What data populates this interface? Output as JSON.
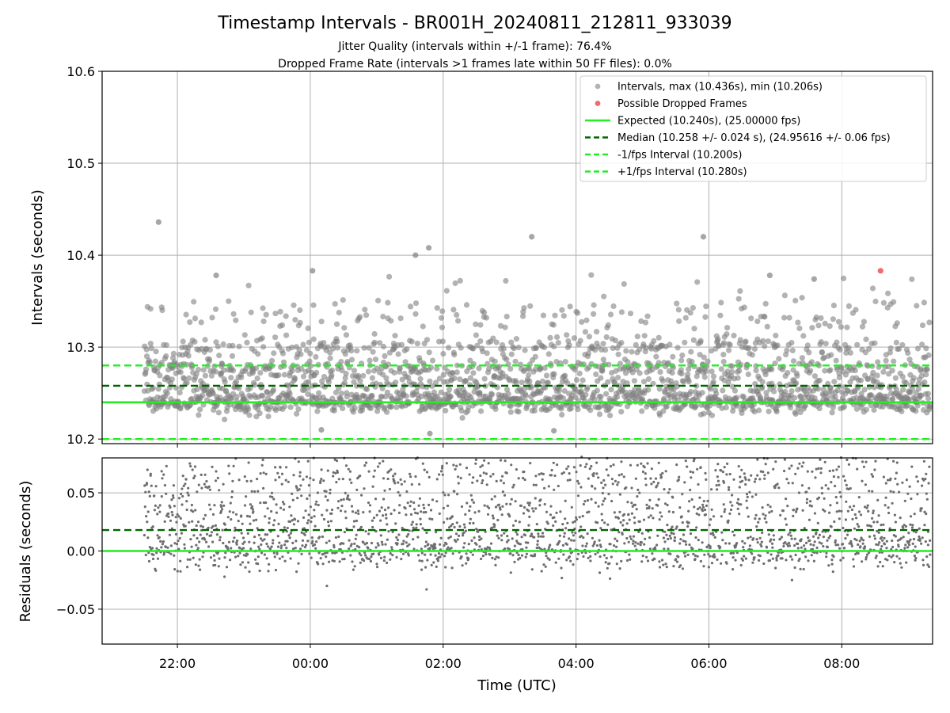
{
  "figure": {
    "title": "Timestamp Intervals - BR001H_20240811_212811_933039",
    "subtitle_1": "Jitter Quality (intervals within +/-1 frame): 76.4%",
    "subtitle_2": "Dropped Frame Rate (intervals >1 frames late within 50 FF files): 0.0%",
    "xlabel": "Time (UTC)",
    "x_tick_labels": [
      "22:00",
      "00:00",
      "02:00",
      "04:00",
      "06:00",
      "08:00"
    ]
  },
  "colors": {
    "points": "#808080",
    "dropped": "#f05050",
    "expected": "#22ee22",
    "median": "#006400",
    "fps_bounds": "#22ee22",
    "grid": "#b0b0b0"
  },
  "chart_data": [
    {
      "type": "scatter",
      "ylabel": "Intervals (seconds)",
      "ylim": [
        10.195,
        10.6
      ],
      "y_ticks": [
        10.2,
        10.3,
        10.4,
        10.5,
        10.6
      ],
      "y_tick_labels": [
        "10.2",
        "10.3",
        "10.4",
        "10.5",
        "10.6"
      ],
      "x_range_hours": [
        "21:30",
        "09:20"
      ],
      "grid": true,
      "legend_position": "top-right",
      "legend": [
        {
          "label": "Intervals, max (10.436s), min (10.206s)",
          "kind": "dot",
          "color": "#808080"
        },
        {
          "label": "Possible Dropped Frames",
          "kind": "dot",
          "color": "#f05050"
        },
        {
          "label": "Expected (10.240s), (25.00000 fps)",
          "kind": "solid",
          "color": "#22ee22"
        },
        {
          "label": "Median (10.258 +/- 0.024 s), (24.95616 +/- 0.06 fps)",
          "kind": "dashed",
          "color": "#006400"
        },
        {
          "label": "-1/fps Interval (10.200s)",
          "kind": "dashed",
          "color": "#22ee22"
        },
        {
          "label": "+1/fps Interval (10.280s)",
          "kind": "dashed",
          "color": "#22ee22"
        }
      ],
      "reference_lines": {
        "expected": 10.24,
        "median": 10.258,
        "minus_1_fps": 10.2,
        "plus_1_fps": 10.28
      },
      "intervals_max": 10.436,
      "intervals_min": 10.206,
      "notable_points": [
        {
          "x": "21:43",
          "y": 10.436
        },
        {
          "x": "22:35",
          "y": 10.378
        },
        {
          "x": "00:02",
          "y": 10.383
        },
        {
          "x": "01:35",
          "y": 10.4
        },
        {
          "x": "01:47",
          "y": 10.408
        },
        {
          "x": "03:20",
          "y": 10.42
        },
        {
          "x": "05:55",
          "y": 10.42
        },
        {
          "x": "06:55",
          "y": 10.378
        },
        {
          "x": "07:35",
          "y": 10.374
        },
        {
          "x": "00:10",
          "y": 10.21
        },
        {
          "x": "01:48",
          "y": 10.206
        },
        {
          "x": "03:40",
          "y": 10.209
        }
      ],
      "dropped_frames": [
        {
          "x": "08:35",
          "y": 10.383
        }
      ]
    },
    {
      "type": "scatter",
      "ylabel": "Residuals (seconds)",
      "ylim": [
        -0.08,
        0.08
      ],
      "y_ticks": [
        0.05,
        0.0,
        -0.05
      ],
      "y_tick_labels": [
        "0.05",
        "0.00",
        "−0.05"
      ],
      "grid": true,
      "reference_lines": {
        "expected": 0.0,
        "median": 0.018
      },
      "notable_points": [
        {
          "x": "01:45",
          "y": -0.033
        },
        {
          "x": "00:15",
          "y": -0.03
        },
        {
          "x": "07:15",
          "y": -0.025
        }
      ]
    }
  ]
}
